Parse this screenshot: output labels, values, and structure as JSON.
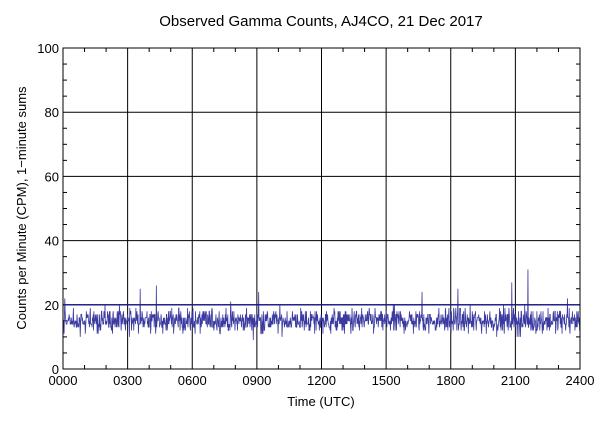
{
  "chart_data": {
    "type": "line",
    "title": "Observed Gamma Counts, AJ4CO, 21 Dec 2017",
    "xlabel": "Time (UTC)",
    "ylabel": "Counts per Minute (CPM), 1−minute sums",
    "x_ticks": [
      {
        "value": 0,
        "label": "0000"
      },
      {
        "value": 180,
        "label": "0300"
      },
      {
        "value": 360,
        "label": "0600"
      },
      {
        "value": 540,
        "label": "0900"
      },
      {
        "value": 720,
        "label": "1200"
      },
      {
        "value": 900,
        "label": "1500"
      },
      {
        "value": 1080,
        "label": "1800"
      },
      {
        "value": 1260,
        "label": "2100"
      },
      {
        "value": 1440,
        "label": "2400"
      }
    ],
    "y_ticks": [
      {
        "value": 0,
        "label": "0"
      },
      {
        "value": 20,
        "label": "20"
      },
      {
        "value": 40,
        "label": "40"
      },
      {
        "value": 60,
        "label": "60"
      },
      {
        "value": 80,
        "label": "80"
      },
      {
        "value": 100,
        "label": "100"
      }
    ],
    "xlim": [
      0,
      1440
    ],
    "ylim": [
      0,
      100
    ],
    "x_unit": "minutes after 0000 UTC",
    "grid": true,
    "reference_line": {
      "y": 20,
      "color": "#1a1a8c"
    },
    "series": [
      {
        "color": "#3a3aa0",
        "baseline_mean": 15,
        "typical_range": [
          7,
          24
        ],
        "peaks": [
          {
            "x": 5,
            "y": 22
          },
          {
            "x": 215,
            "y": 25
          },
          {
            "x": 260,
            "y": 26
          },
          {
            "x": 545,
            "y": 24
          },
          {
            "x": 1000,
            "y": 24
          },
          {
            "x": 1100,
            "y": 25
          },
          {
            "x": 1250,
            "y": 27
          },
          {
            "x": 1295,
            "y": 31
          },
          {
            "x": 1405,
            "y": 22
          }
        ]
      }
    ]
  },
  "colors": {
    "plot_background": "#ffffff",
    "grid": "#000000",
    "series": "#3a3aa0",
    "reference_line": "#1a1a8c"
  }
}
